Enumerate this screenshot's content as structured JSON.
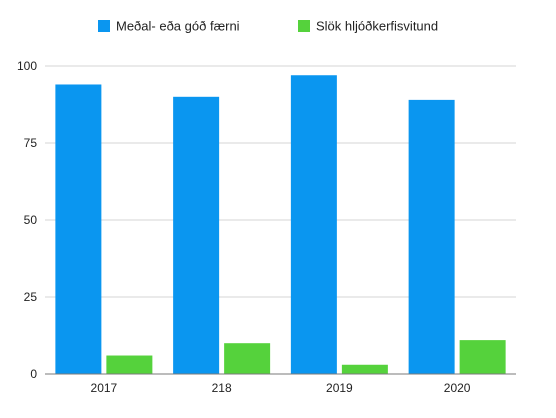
{
  "chart_data": {
    "type": "bar",
    "categories": [
      "2017",
      "218",
      "2019",
      "2020"
    ],
    "series": [
      {
        "name": "Meðal- eða góð færni",
        "values": [
          94,
          90,
          97,
          89
        ],
        "color": "#0a96f0"
      },
      {
        "name": "Slök hljóðkerfisvitund",
        "values": [
          6,
          10,
          3,
          11
        ],
        "color": "#55d23c"
      }
    ],
    "ylim": [
      0,
      100
    ],
    "yticks": [
      "0",
      "25",
      "50",
      "75",
      "100"
    ],
    "grid": true,
    "legend_position": "top"
  }
}
